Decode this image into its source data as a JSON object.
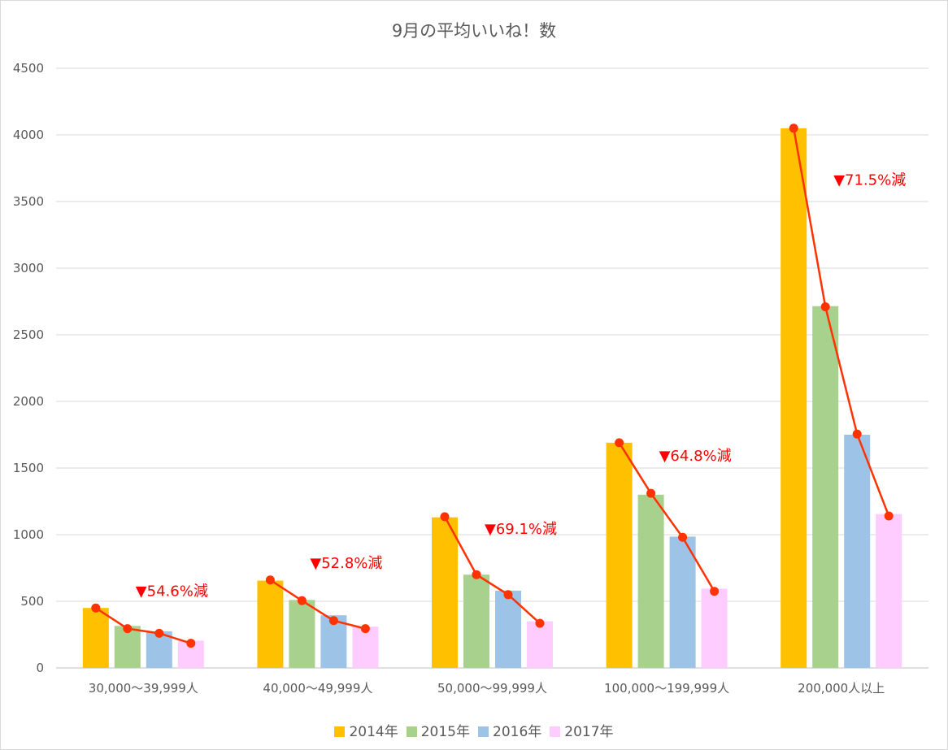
{
  "chart_data": {
    "type": "bar",
    "title": "9月の平均いいね！数",
    "categories": [
      "30,000〜39,999人",
      "40,000〜49,999人",
      "50,000〜99,999人",
      "100,000〜199,999人",
      "200,000人以上"
    ],
    "series": [
      {
        "name": "2014年",
        "color": "#ffc000",
        "values": [
          450,
          655,
          1130,
          1690,
          4050
        ]
      },
      {
        "name": "2015年",
        "color": "#a9d18e",
        "values": [
          315,
          510,
          700,
          1300,
          2715
        ]
      },
      {
        "name": "2016年",
        "color": "#9dc3e6",
        "values": [
          275,
          395,
          580,
          985,
          1750
        ]
      },
      {
        "name": "2017年",
        "color": "#ffccff",
        "values": [
          205,
          310,
          350,
          595,
          1155
        ]
      }
    ],
    "line_overlay": {
      "color": "#ff3300",
      "values": [
        [
          450,
          295,
          260,
          185
        ],
        [
          660,
          505,
          355,
          295
        ],
        [
          1135,
          700,
          550,
          335
        ],
        [
          1690,
          1310,
          980,
          575
        ],
        [
          4050,
          2710,
          1755,
          1140
        ]
      ]
    },
    "annotations": [
      "▼54.6%減",
      "▼52.8%減",
      "▼69.1%減",
      "▼64.8%減",
      "▼71.5%減"
    ],
    "yticks": [
      "0",
      "500",
      "1000",
      "1500",
      "2000",
      "2500",
      "3000",
      "3500",
      "4000",
      "4500"
    ],
    "ylim": [
      0,
      4500
    ],
    "grid": true,
    "legend_position": "bottom"
  }
}
